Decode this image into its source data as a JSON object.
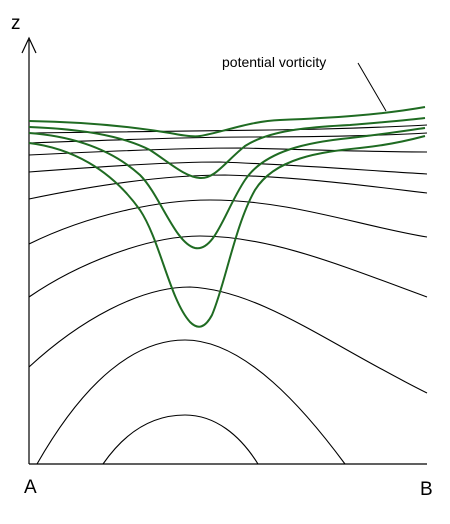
{
  "diagram": {
    "axis_label": "z",
    "left_label": "A",
    "right_label": "B",
    "annotation": "potential vorticity",
    "colors": {
      "axis": "#000000",
      "isentropes": "#000000",
      "pv_contours": "#1f6b22",
      "background": "#ffffff"
    },
    "isentrope_count": 14,
    "pv_contour_count": 4
  }
}
